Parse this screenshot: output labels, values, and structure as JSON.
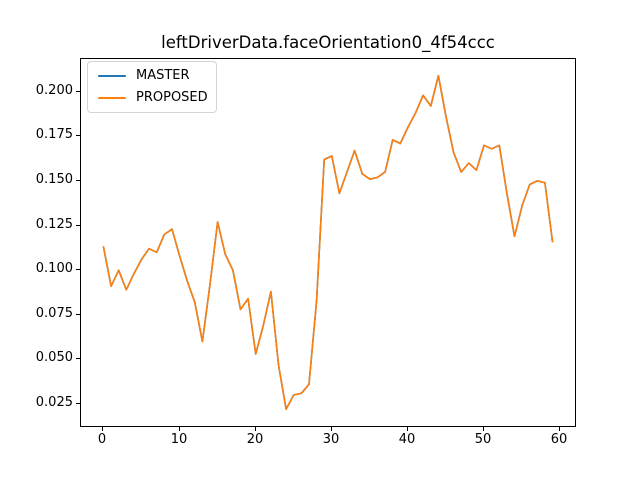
{
  "chart_data": {
    "type": "line",
    "title": "leftDriverData.faceOrientation0_4f54ccc",
    "xlabel": "",
    "ylabel": "",
    "grid": false,
    "legend_position": "upper left",
    "xlim": [
      -2.95,
      61.95
    ],
    "ylim": [
      0.01265,
      0.21835
    ],
    "xticks": [
      "0",
      "10",
      "20",
      "30",
      "40",
      "50",
      "60"
    ],
    "yticks": [
      "0.025",
      "0.050",
      "0.075",
      "0.100",
      "0.125",
      "0.150",
      "0.175",
      "0.200"
    ],
    "x": [
      0,
      1,
      2,
      3,
      4,
      5,
      6,
      7,
      8,
      9,
      10,
      11,
      12,
      13,
      14,
      15,
      16,
      17,
      18,
      19,
      20,
      21,
      22,
      23,
      24,
      25,
      26,
      27,
      28,
      29,
      30,
      31,
      32,
      33,
      34,
      35,
      36,
      37,
      38,
      39,
      40,
      41,
      42,
      43,
      44,
      45,
      46,
      47,
      48,
      49,
      50,
      51,
      52,
      53,
      54,
      55,
      56,
      57,
      58,
      59
    ],
    "series": [
      {
        "name": "MASTER",
        "color": "#1f77b4",
        "values": [
          0.113,
          0.091,
          0.1,
          0.089,
          0.098,
          0.106,
          0.112,
          0.11,
          0.12,
          0.123,
          0.108,
          0.094,
          0.082,
          0.06,
          0.092,
          0.127,
          0.109,
          0.1,
          0.078,
          0.084,
          0.053,
          0.069,
          0.088,
          0.047,
          0.022,
          0.03,
          0.031,
          0.036,
          0.083,
          0.162,
          0.164,
          0.143,
          0.155,
          0.167,
          0.154,
          0.151,
          0.152,
          0.155,
          0.173,
          0.171,
          0.18,
          0.188,
          0.198,
          0.192,
          0.209,
          0.186,
          0.166,
          0.155,
          0.16,
          0.156,
          0.17,
          0.168,
          0.17,
          0.143,
          0.119,
          0.136,
          0.148,
          0.15,
          0.149,
          0.116
        ]
      },
      {
        "name": "PROPOSED",
        "color": "#ff7f0e",
        "values": [
          0.113,
          0.091,
          0.1,
          0.089,
          0.098,
          0.106,
          0.112,
          0.11,
          0.12,
          0.123,
          0.108,
          0.094,
          0.082,
          0.06,
          0.092,
          0.127,
          0.109,
          0.1,
          0.078,
          0.084,
          0.053,
          0.069,
          0.088,
          0.047,
          0.022,
          0.03,
          0.031,
          0.036,
          0.083,
          0.162,
          0.164,
          0.143,
          0.155,
          0.167,
          0.154,
          0.151,
          0.152,
          0.155,
          0.173,
          0.171,
          0.18,
          0.188,
          0.198,
          0.192,
          0.209,
          0.186,
          0.166,
          0.155,
          0.16,
          0.156,
          0.17,
          0.168,
          0.17,
          0.143,
          0.119,
          0.136,
          0.148,
          0.15,
          0.149,
          0.116
        ]
      }
    ]
  },
  "legend": {
    "entries": [
      {
        "label": "MASTER",
        "color": "#1f77b4"
      },
      {
        "label": "PROPOSED",
        "color": "#ff7f0e"
      }
    ]
  }
}
